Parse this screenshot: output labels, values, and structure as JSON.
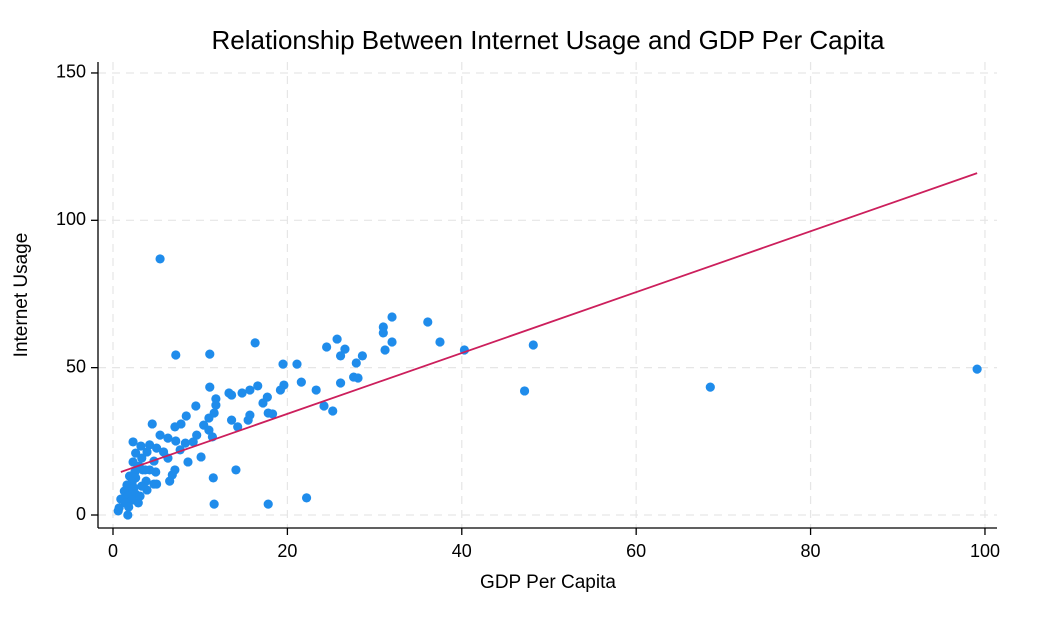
{
  "chart_data": {
    "type": "scatter",
    "title": "Relationship Between Internet Usage and GDP Per Capita",
    "x_label": "GDP Per Capita",
    "y_label": "Internet Usage",
    "color": "#1f8ceb",
    "x": [
      5.4,
      99.1,
      68.5,
      47.2,
      48.2,
      40.3,
      37.5,
      36.1,
      32.0,
      32.0,
      31.0,
      31.2,
      31.0,
      25.7,
      24.5,
      26.6,
      26.1,
      28.6,
      27.9,
      27.6,
      28.1,
      26.1,
      23.3,
      21.6,
      21.1,
      19.5,
      19.6,
      19.2,
      16.3,
      16.6,
      15.7,
      14.8,
      13.3,
      17.7,
      17.2,
      15.7,
      15.5,
      17.8,
      18.3,
      13.6,
      14.3,
      24.2,
      25.2,
      17.8,
      22.2,
      14.1,
      11.6,
      11.5,
      11.1,
      7.2,
      11.1,
      11.8,
      11.8,
      11.6,
      11.0,
      10.4,
      9.5,
      8.4,
      7.8,
      7.1,
      4.5,
      5.4,
      6.3,
      7.2,
      8.3,
      9.2,
      9.6,
      11.4,
      11.0,
      10.1,
      8.6,
      7.7,
      7.1,
      6.8,
      6.3,
      5.8,
      5.0,
      4.2,
      3.9,
      4.7,
      4.9,
      4.2,
      3.4,
      3.8,
      4.7,
      3.9,
      3.3,
      2.3,
      3.2,
      2.6,
      3.3,
      2.3,
      3.0,
      2.5,
      1.9,
      2.6,
      2.2,
      1.6,
      2.4,
      1.9,
      1.3,
      2.6,
      1.7,
      0.9,
      2.2,
      1.4,
      0.7,
      0.6,
      1.7,
      1.8,
      2.9,
      3.1,
      3.7,
      5.0,
      6.5,
      13.6
    ],
    "values": [
      86.9,
      49.5,
      43.4,
      42.1,
      57.7,
      56.0,
      58.7,
      65.5,
      67.2,
      58.7,
      63.8,
      56.0,
      61.8,
      59.7,
      57.0,
      56.3,
      54.0,
      54.0,
      51.6,
      46.8,
      46.5,
      44.8,
      42.4,
      45.1,
      51.2,
      51.2,
      44.1,
      42.4,
      58.4,
      43.8,
      42.4,
      41.4,
      41.4,
      40.0,
      38.0,
      33.9,
      32.2,
      34.6,
      34.3,
      32.2,
      29.9,
      37.0,
      35.3,
      3.7,
      5.8,
      15.3,
      3.7,
      12.6,
      54.6,
      54.3,
      43.4,
      39.4,
      37.3,
      34.6,
      32.9,
      30.5,
      37.0,
      33.6,
      30.9,
      29.9,
      30.9,
      27.1,
      26.1,
      25.1,
      24.4,
      24.8,
      27.1,
      26.5,
      28.8,
      19.7,
      18.0,
      22.1,
      15.3,
      13.6,
      19.3,
      21.4,
      22.7,
      23.8,
      21.4,
      18.3,
      14.6,
      15.3,
      15.3,
      11.5,
      10.5,
      8.5,
      9.8,
      24.8,
      23.4,
      21.0,
      19.3,
      18.0,
      16.6,
      14.6,
      13.2,
      12.6,
      11.2,
      10.2,
      9.2,
      7.8,
      8.1,
      7.1,
      6.4,
      5.4,
      5.1,
      4.1,
      2.4,
      1.4,
      0.0,
      2.7,
      4.1,
      6.4,
      15.3,
      10.5,
      11.5,
      40.7
    ],
    "trend_line": {
      "color": "#cc1f5c",
      "x": [
        0.9,
        99.1
      ],
      "values": [
        14.6,
        116.0
      ]
    },
    "xlim": [
      -1.72,
      101.38
    ],
    "ylim": [
      -4.41,
      153.72
    ],
    "xticks": [
      0,
      20,
      40,
      60,
      80,
      100
    ],
    "yticks": [
      0,
      50,
      100,
      150
    ],
    "grid": true
  }
}
